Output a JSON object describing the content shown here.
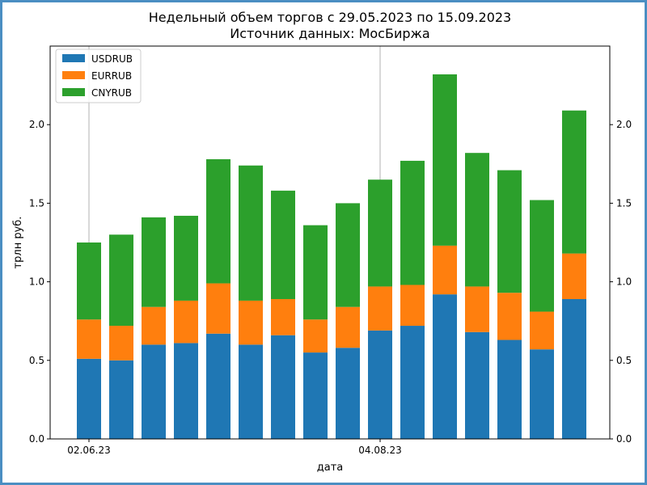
{
  "chart_data": {
    "type": "bar",
    "stacked": true,
    "title": "Недельный объем торгов с 29.05.2023 по 15.09.2023",
    "subtitle": "Источник данных: МосБиржа",
    "xlabel": "дата",
    "ylabel": "трлн руб.",
    "ylim": [
      0,
      2.5
    ],
    "yticks": [
      0.0,
      0.5,
      1.0,
      1.5,
      2.0
    ],
    "ytick_labels": [
      "0.0",
      "0.5",
      "1.0",
      "1.5",
      "2.0"
    ],
    "right_axis": true,
    "grid": "partial",
    "legend_position": "top-left",
    "x_tick_labels": [
      {
        "label": "02.06.23",
        "category_index": 0
      },
      {
        "label": "04.08.23",
        "category_index": 9
      }
    ],
    "categories": [
      "",
      "",
      "",
      "",
      "",
      "",
      "",
      "",
      "",
      "",
      "",
      "",
      "",
      "",
      "",
      ""
    ],
    "series": [
      {
        "name": "USDRUB",
        "color": "#1f77b4",
        "values": [
          0.51,
          0.5,
          0.6,
          0.61,
          0.67,
          0.6,
          0.66,
          0.55,
          0.58,
          0.69,
          0.72,
          0.92,
          0.68,
          0.63,
          0.57,
          0.89
        ]
      },
      {
        "name": "EURRUB",
        "color": "#ff7f0e",
        "values": [
          0.25,
          0.22,
          0.24,
          0.27,
          0.32,
          0.28,
          0.23,
          0.21,
          0.26,
          0.28,
          0.26,
          0.31,
          0.29,
          0.3,
          0.24,
          0.29
        ]
      },
      {
        "name": "CNYRUB",
        "color": "#2ca02c",
        "values": [
          0.49,
          0.58,
          0.57,
          0.54,
          0.79,
          0.86,
          0.69,
          0.6,
          0.66,
          0.68,
          0.79,
          1.09,
          0.85,
          0.78,
          0.71,
          0.91
        ]
      }
    ]
  }
}
